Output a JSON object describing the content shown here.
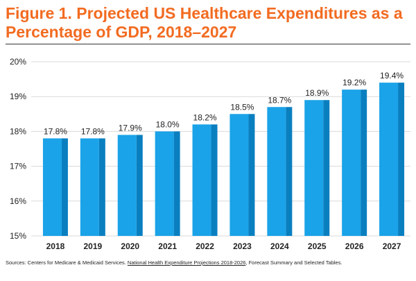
{
  "title": "Figure 1. Projected US Healthcare Expenditures as a Percentage of GDP, 2018–2027",
  "colors": {
    "title": "#f26b21",
    "bar_front": "#1aa3e8",
    "bar_side": "#0a7fc0",
    "grid": "#d9d9d9",
    "text": "#222222"
  },
  "chart_data": {
    "type": "bar",
    "title": "",
    "xlabel": "",
    "ylabel": "",
    "categories": [
      "2018",
      "2019",
      "2020",
      "2021",
      "2022",
      "2023",
      "2024",
      "2025",
      "2026",
      "2027"
    ],
    "values": [
      17.8,
      17.8,
      17.9,
      18.0,
      18.2,
      18.5,
      18.7,
      18.9,
      19.2,
      19.4
    ],
    "value_labels": [
      "17.8%",
      "17.8%",
      "17.9%",
      "18.0%",
      "18.2%",
      "18.5%",
      "18.7%",
      "18.9%",
      "19.2%",
      "19.4%"
    ],
    "ylim": [
      15,
      20
    ],
    "y_ticks": [
      15,
      16,
      17,
      18,
      19,
      20
    ],
    "y_tick_labels": [
      "15%",
      "16%",
      "17%",
      "18%",
      "19%",
      "20%"
    ],
    "grid": true,
    "legend": "none"
  },
  "source": {
    "prefix": "Sources: Centers for Medicare & Medicaid Services. ",
    "link_text": "National Health Expenditure Projections 2018-2026",
    "suffix": ", Forecast Summary and Selected Tables."
  }
}
